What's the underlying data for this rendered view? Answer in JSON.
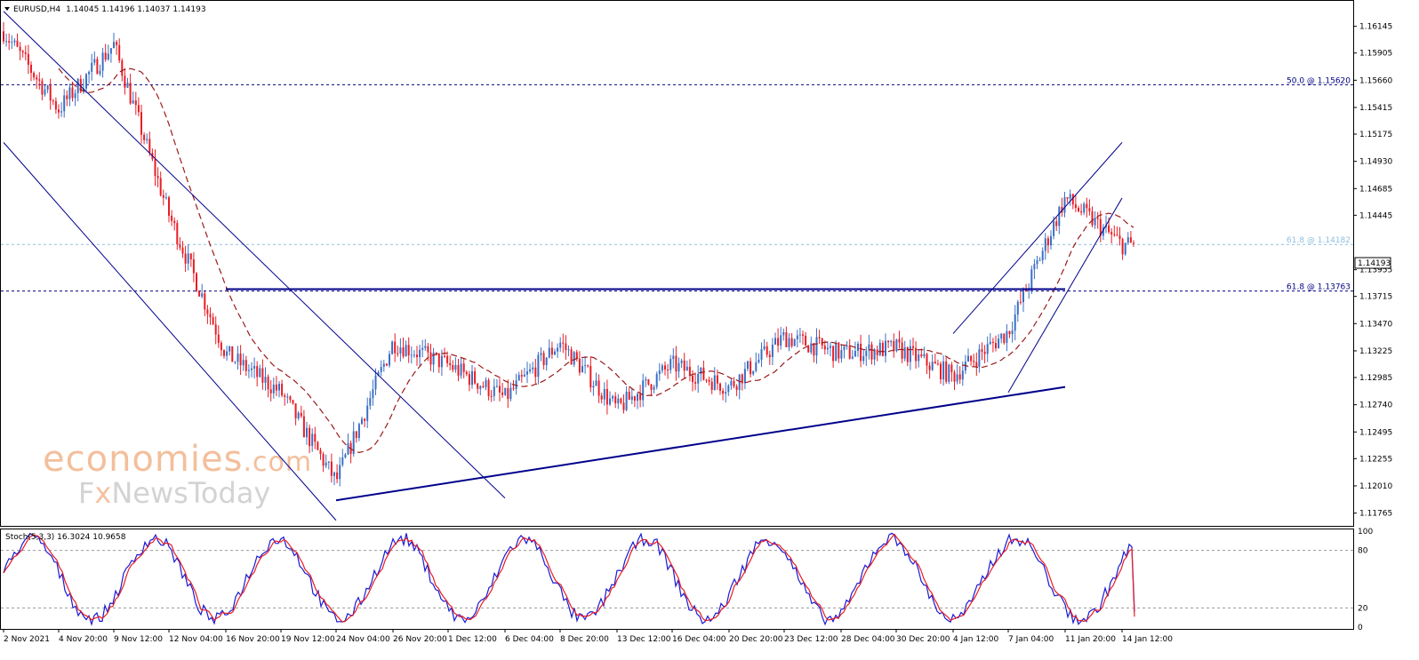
{
  "chart_data": [
    {
      "type": "candlestick",
      "header": {
        "symbol": "EURUSD,H4",
        "ohlc": "1.14045 1.14196 1.14037 1.14193"
      },
      "ylim": [
        1.1165,
        1.1635
      ],
      "y_ticks": [
        "1.16145",
        "1.15905",
        "1.15660",
        "1.15415",
        "1.15175",
        "1.14930",
        "1.14685",
        "1.14445",
        "1.13955",
        "1.13715",
        "1.13470",
        "1.13225",
        "1.12985",
        "1.12740",
        "1.12495",
        "1.12255",
        "1.12010",
        "1.11765"
      ],
      "last_price": "1.14193",
      "x_ticks": [
        "2 Nov 2021",
        "4 Nov 20:00",
        "9 Nov 12:00",
        "12 Nov 04:00",
        "16 Nov 20:00",
        "19 Nov 12:00",
        "24 Nov 04:00",
        "26 Nov 20:00",
        "1 Dec 12:00",
        "6 Dec 04:00",
        "8 Dec 20:00",
        "13 Dec 12:00",
        "16 Dec 04:00",
        "20 Dec 20:00",
        "23 Dec 12:00",
        "28 Dec 04:00",
        "30 Dec 20:00",
        "4 Jan 12:00",
        "7 Jan 04:00",
        "11 Jan 20:00",
        "14 Jan 12:00"
      ],
      "levels": [
        {
          "label": "50.0 @ 1.15620",
          "value": 1.1562,
          "color": "#000080"
        },
        {
          "label": "61.8 @ 1.14182",
          "value": 1.14182,
          "color": "#8fbfe0"
        },
        {
          "label": "61.8 @ 1.13763",
          "value": 1.13763,
          "color": "#000080"
        }
      ],
      "trendlines": [
        {
          "name": "channel-upper",
          "from": [
            "2 Nov 2021",
            1.1628
          ],
          "to": [
            "6 Dec 04:00",
            1.119
          ]
        },
        {
          "name": "channel-lower",
          "from": [
            "2 Nov 2021",
            1.151
          ],
          "to": [
            "24 Nov 04:00",
            1.117
          ]
        },
        {
          "name": "resistance",
          "from": [
            "16 Nov 20:00",
            1.1378
          ],
          "to": [
            "11 Jan 20:00",
            1.1378
          ]
        },
        {
          "name": "support",
          "from": [
            "24 Nov 04:00",
            1.1188
          ],
          "to": [
            "11 Jan 20:00",
            1.129
          ]
        },
        {
          "name": "rising-upper",
          "from": [
            "4 Jan 12:00",
            1.1338
          ],
          "to": [
            "14 Jan 12:00",
            1.151
          ]
        },
        {
          "name": "rising-lower",
          "from": [
            "7 Jan 04:00",
            1.1285
          ],
          "to": [
            "14 Jan 12:00",
            1.146
          ]
        }
      ],
      "colors": {
        "up": "#3a6fc4",
        "down": "#e81d25",
        "ma": "#9b1b1b",
        "trend": "#00008b"
      },
      "anchors": [
        [
          "2 Nov 2021",
          1.161
        ],
        [
          "4 Nov 20:00",
          1.154
        ],
        [
          "9 Nov 12:00",
          1.1598
        ],
        [
          "12 Nov 04:00",
          1.1445
        ],
        [
          "16 Nov 20:00",
          1.132
        ],
        [
          "19 Nov 12:00",
          1.1285
        ],
        [
          "24 Nov 04:00",
          1.1205
        ],
        [
          "26 Nov 20:00",
          1.133
        ],
        [
          "1 Dec 12:00",
          1.131
        ],
        [
          "6 Dec 04:00",
          1.128
        ],
        [
          "8 Dec 20:00",
          1.133
        ],
        [
          "13 Dec 12:00",
          1.127
        ],
        [
          "16 Dec 04:00",
          1.131
        ],
        [
          "20 Dec 20:00",
          1.129
        ],
        [
          "23 Dec 12:00",
          1.1335
        ],
        [
          "28 Dec 04:00",
          1.132
        ],
        [
          "30 Dec 20:00",
          1.1325
        ],
        [
          "4 Jan 12:00",
          1.13
        ],
        [
          "7 Jan 04:00",
          1.134
        ],
        [
          "11 Jan 20:00",
          1.146
        ],
        [
          "14 Jan 12:00",
          1.1418
        ]
      ]
    },
    {
      "type": "line",
      "header": "Stoch(5,3,3) 16.3024 10.9658",
      "ylim": [
        0,
        100
      ],
      "y_ticks": [
        "100",
        "80",
        "20",
        "0"
      ],
      "levels": [
        80,
        20
      ],
      "series": [
        {
          "value": 16.3024,
          "color": "#1a1ad6"
        },
        {
          "value": 10.9658,
          "color": "#e81d25"
        }
      ]
    }
  ],
  "watermark": {
    "line1": "economies",
    "line2a": "F",
    "line2b": "x",
    "line2c": "NewsToday",
    "line1_tail": ".com"
  }
}
